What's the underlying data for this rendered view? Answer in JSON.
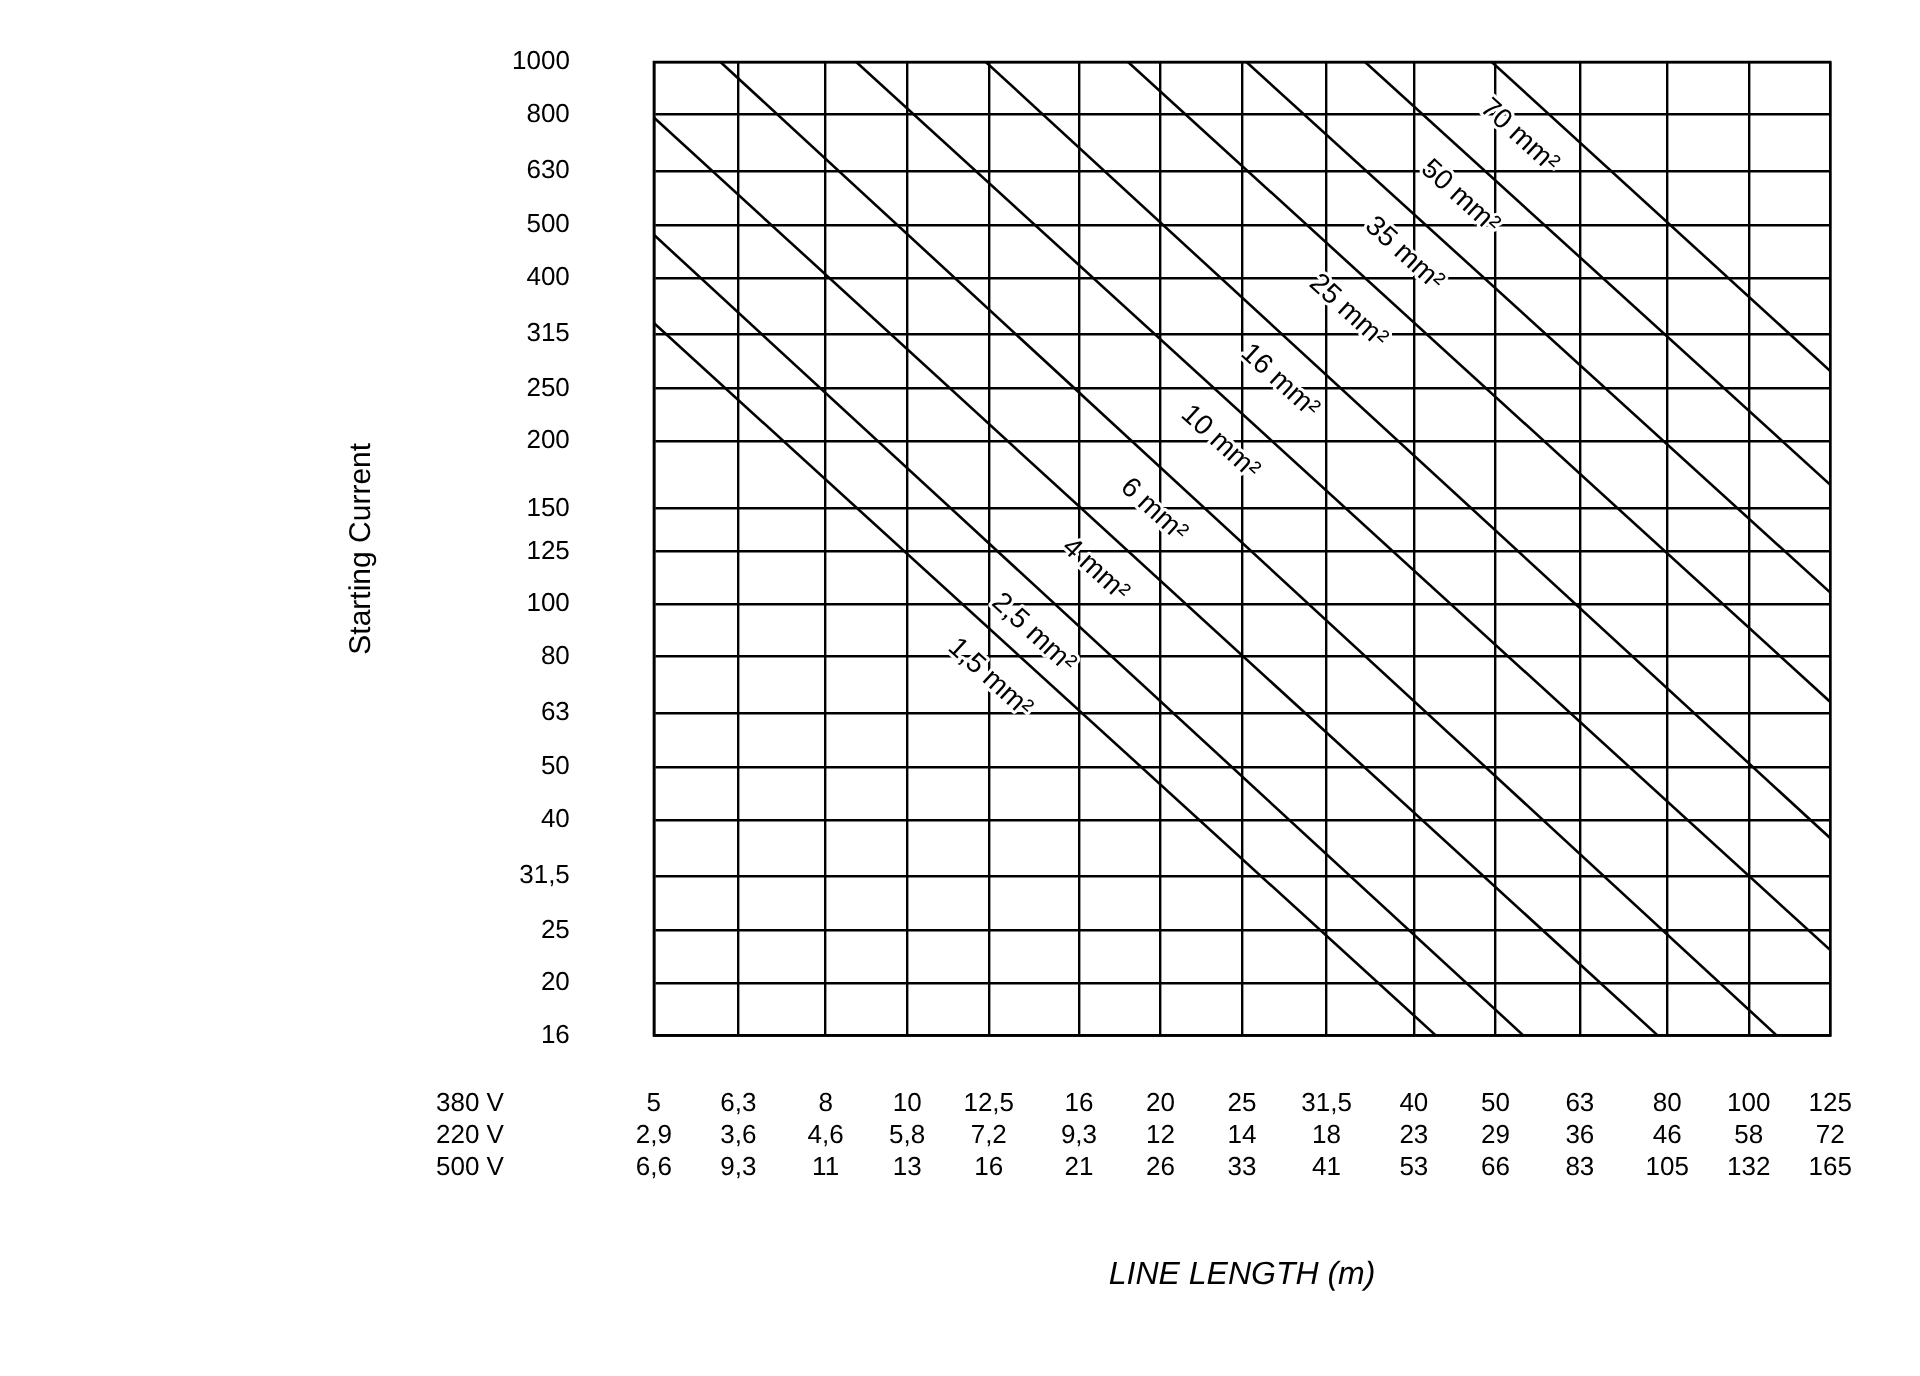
{
  "chart_data": {
    "type": "line",
    "xlabel": "LINE LENGTH (m)",
    "ylabel": "Starting Current",
    "annotations": [
      "380 V",
      "220 V",
      "500 V",
      "2,9",
      "3,6",
      "4,6",
      "5,8",
      "7,2",
      "9,3",
      "12",
      "14",
      "18",
      "23",
      "29",
      "36",
      "46",
      "58",
      "72",
      "6,6",
      "9,3",
      "11",
      "13",
      "16",
      "21",
      "26",
      "33",
      "41",
      "53",
      "66",
      "83",
      "105",
      "132",
      "165"
    ],
    "log": "xy",
    "grid": true,
    "legend": false,
    "marker": "none",
    "line_style": "solid",
    "xlim": [
      5,
      125
    ],
    "xticks": [
      5,
      {
        "value": 6.3,
        "label": "6,3"
      },
      8,
      10,
      {
        "value": 12.5,
        "label": "12,5"
      },
      16,
      20,
      25,
      {
        "value": 31.5,
        "label": "31,5"
      },
      40,
      50,
      63,
      80,
      100,
      125
    ],
    "ylim": [
      16,
      1000
    ],
    "yticks": [
      16,
      20,
      25,
      {
        "value": 31.5,
        "label": "31,5"
      },
      40,
      50,
      63,
      80,
      100,
      125,
      150,
      200,
      250,
      315,
      400,
      500,
      630,
      800,
      1000
    ],
    "series": [
      {
        "name": "1,5 mm²",
        "color": "#000000",
        "x": [
          5,
          42.5
        ],
        "values": [
          330,
          16
        ]
      },
      {
        "name": "2,5 mm²",
        "color": "#000000",
        "x": [
          5,
          54
        ],
        "values": [
          480,
          16
        ]
      },
      {
        "name": "4 mm²",
        "color": "#000000",
        "x": [
          5,
          78
        ],
        "values": [
          790,
          16
        ]
      },
      {
        "name": "6 mm²",
        "color": "#000000",
        "x": [
          6,
          108
        ],
        "values": [
          1000,
          16
        ]
      },
      {
        "name": "10 mm²",
        "color": "#000000",
        "x": [
          8.7,
          125
        ],
        "values": [
          1000,
          23
        ]
      },
      {
        "name": "16 mm²",
        "color": "#000000",
        "x": [
          12.4,
          125
        ],
        "values": [
          1000,
          37
        ]
      },
      {
        "name": "25 mm²",
        "color": "#000000",
        "x": [
          18.3,
          125
        ],
        "values": [
          1000,
          66
        ]
      },
      {
        "name": "35 mm²",
        "color": "#000000",
        "x": [
          25.3,
          125
        ],
        "values": [
          1000,
          105
        ]
      },
      {
        "name": "50 mm²",
        "color": "#000000",
        "x": [
          35,
          125
        ],
        "values": [
          1000,
          166
        ]
      },
      {
        "name": "70 mm²",
        "color": "#000000",
        "x": [
          49.5,
          125
        ],
        "values": [
          1000,
          269
        ]
      }
    ]
  }
}
